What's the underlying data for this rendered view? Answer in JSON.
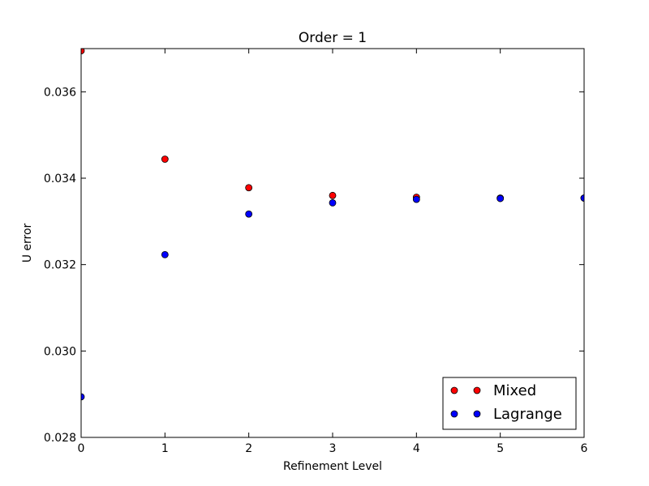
{
  "chart_data": {
    "type": "scatter",
    "title": "Order = 1",
    "xlabel": "Refinement Level",
    "ylabel": "U error",
    "xlim": [
      0,
      6
    ],
    "ylim": [
      0.028,
      0.037
    ],
    "xticks": [
      "0",
      "1",
      "2",
      "3",
      "4",
      "5",
      "6"
    ],
    "yticks": [
      "0.028",
      "0.030",
      "0.032",
      "0.034",
      "0.036"
    ],
    "grid": false,
    "legend_position": "bottom-right",
    "series": [
      {
        "name": "Mixed",
        "color": "#ff0000",
        "x": [
          0,
          1,
          2,
          3,
          4,
          5,
          6
        ],
        "y": [
          0.03695,
          0.03444,
          0.03378,
          0.0336,
          0.03356,
          0.03354,
          0.03354
        ]
      },
      {
        "name": "Lagrange",
        "color": "#0000ff",
        "x": [
          0,
          1,
          2,
          3,
          4,
          5,
          6
        ],
        "y": [
          0.02894,
          0.03223,
          0.03317,
          0.03343,
          0.03351,
          0.03353,
          0.03354
        ]
      }
    ]
  }
}
